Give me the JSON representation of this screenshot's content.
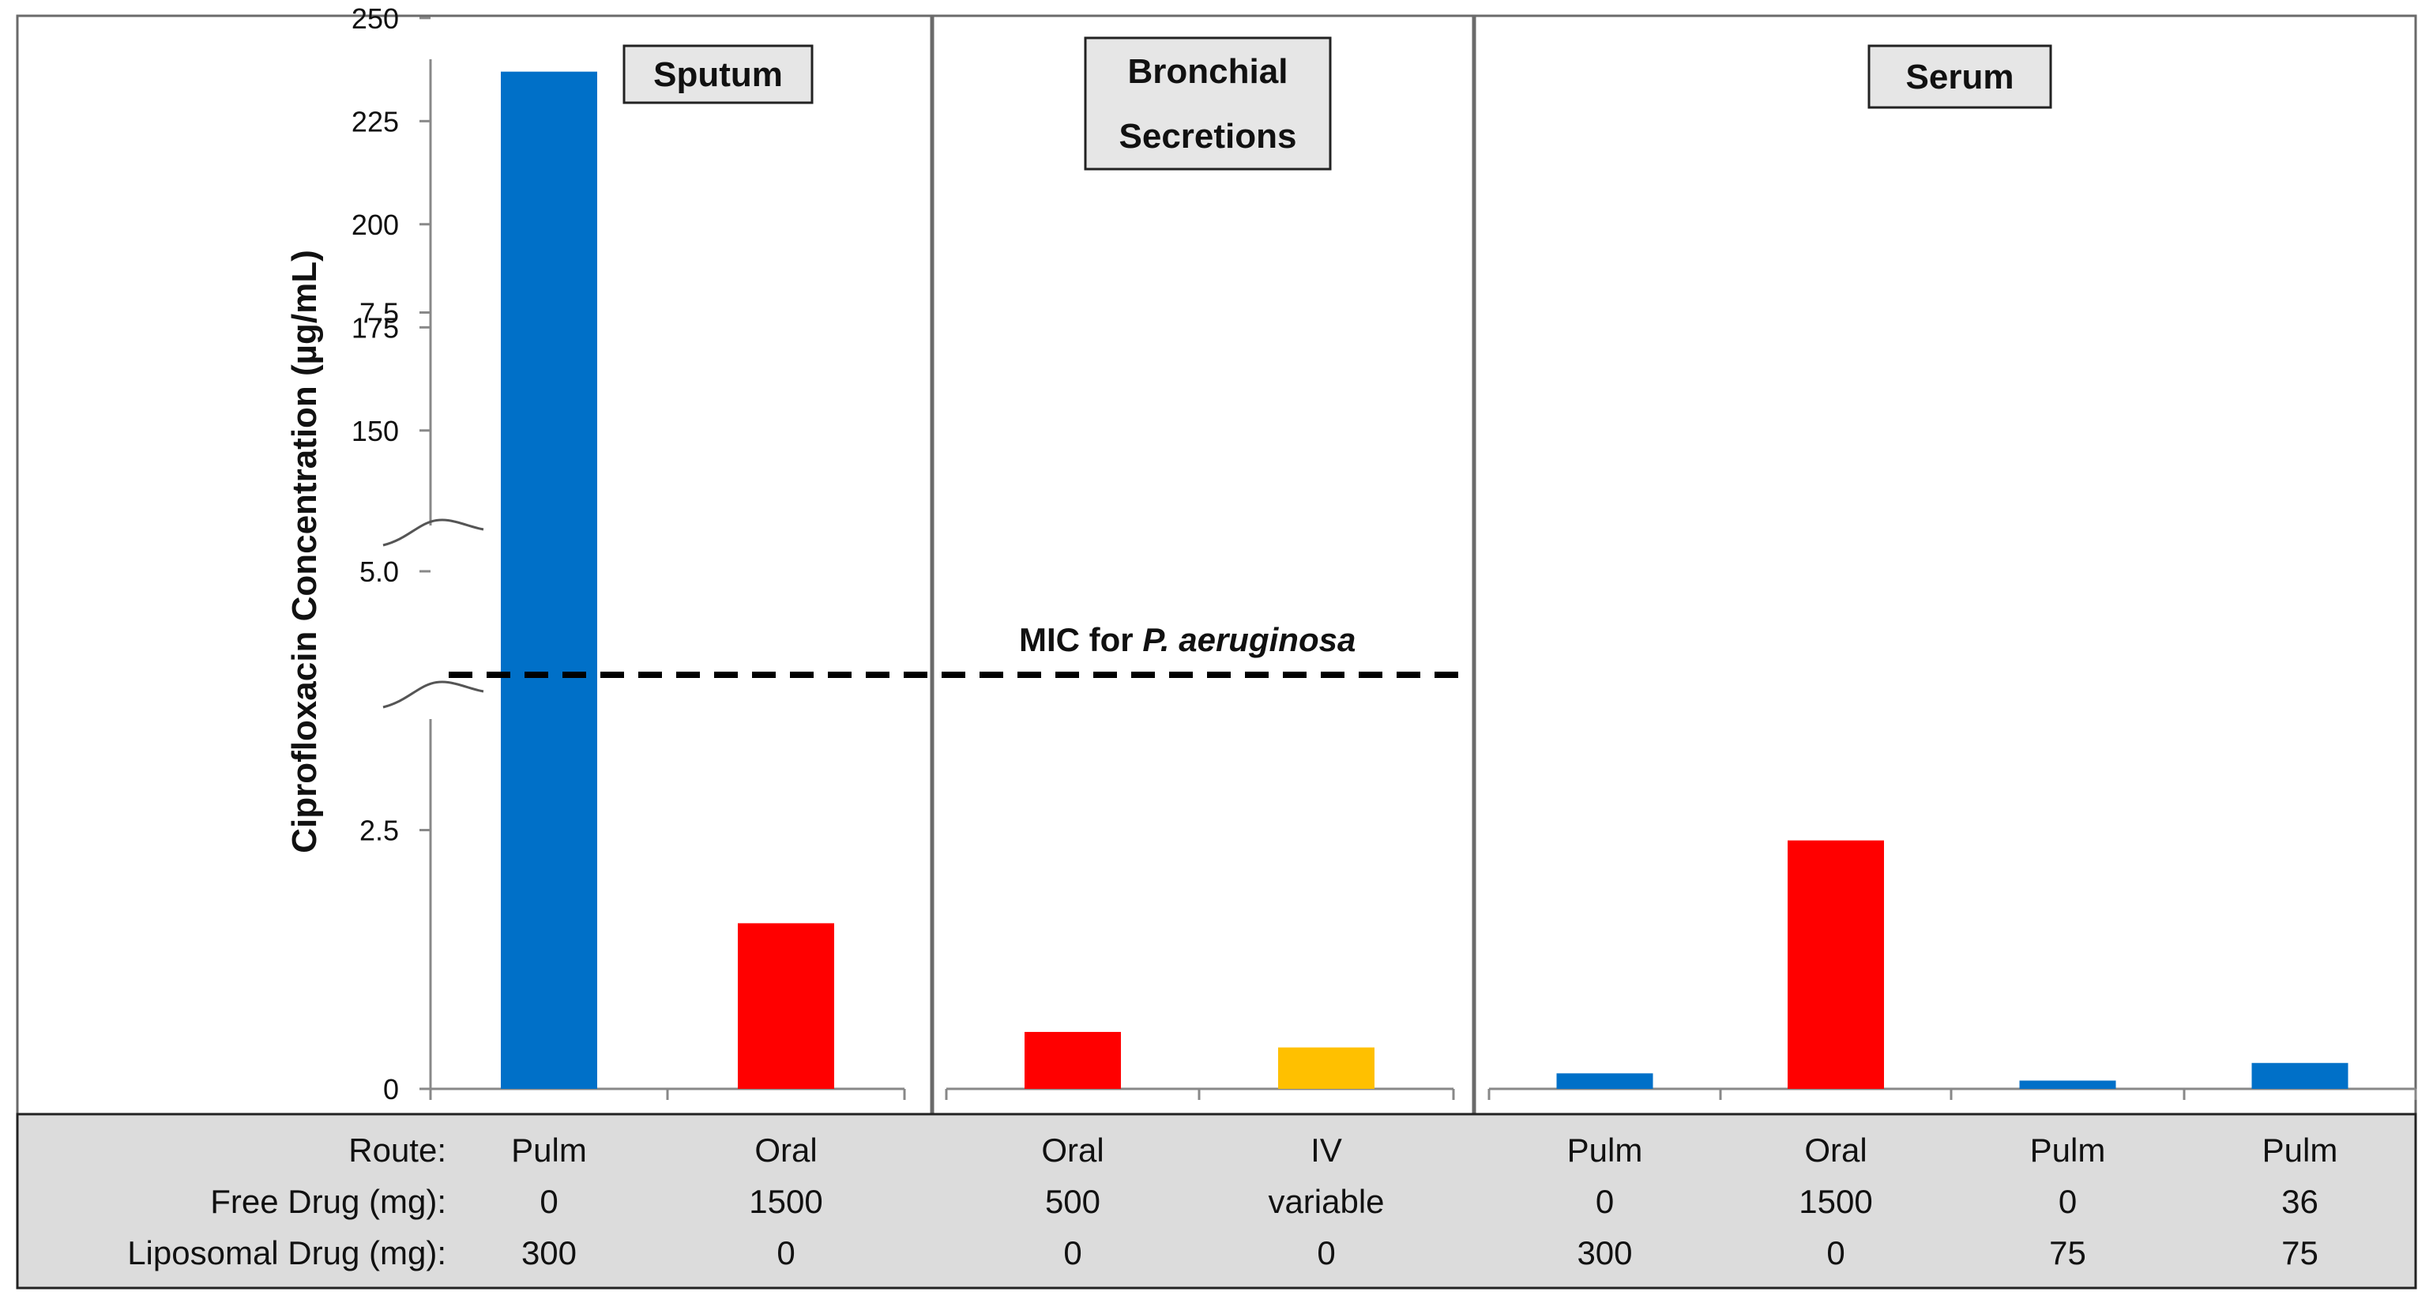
{
  "chart_data": {
    "type": "bar",
    "ylabel": "Ciprofloxacin Concentration (µg/mL)",
    "ylim": [
      0,
      250
    ],
    "axis_break": {
      "lower_range": [
        0,
        8.75
      ],
      "upper_range": [
        140,
        250
      ]
    },
    "yticks": [
      {
        "value": 0,
        "label": "0"
      },
      {
        "value": 2.5,
        "label": "2.5"
      },
      {
        "value": 5.0,
        "label": "5.0"
      },
      {
        "value": 7.5,
        "label": "7.5"
      },
      {
        "value": 150,
        "label": "150"
      },
      {
        "value": 175,
        "label": "175"
      },
      {
        "value": 200,
        "label": "200"
      },
      {
        "value": 225,
        "label": "225"
      },
      {
        "value": 250,
        "label": "250"
      }
    ],
    "grid": false,
    "reference_line": {
      "value": 4.0,
      "label_prefix": "MIC for ",
      "label_italic": "P. aeruginosa",
      "style": "dashed"
    },
    "panels": [
      {
        "title_lines": [
          "Sputum"
        ],
        "bars": [
          {
            "route": "Pulm",
            "free_drug": "0",
            "liposomal_drug": "300",
            "value": 237,
            "color": "#0070C8"
          },
          {
            "route": "Oral",
            "free_drug": "1500",
            "liposomal_drug": "0",
            "value": 1.6,
            "color": "#FF0000"
          }
        ]
      },
      {
        "title_lines": [
          "Bronchial",
          "Secretions"
        ],
        "bars": [
          {
            "route": "Oral",
            "free_drug": "500",
            "liposomal_drug": "0",
            "value": 0.55,
            "color": "#FF0000"
          },
          {
            "route": "IV",
            "free_drug": "variable",
            "liposomal_drug": "0",
            "value": 0.4,
            "color": "#FFC000"
          }
        ]
      },
      {
        "title_lines": [
          "Serum"
        ],
        "bars": [
          {
            "route": "Pulm",
            "free_drug": "0",
            "liposomal_drug": "300",
            "value": 0.15,
            "color": "#0070C8"
          },
          {
            "route": "Oral",
            "free_drug": "1500",
            "liposomal_drug": "0",
            "value": 2.4,
            "color": "#FF0000"
          },
          {
            "route": "Pulm",
            "free_drug": "0",
            "liposomal_drug": "75",
            "value": 0.08,
            "color": "#0070C8"
          },
          {
            "route": "Pulm",
            "free_drug": "36",
            "liposomal_drug": "75",
            "value": 0.25,
            "color": "#0070C8"
          }
        ]
      }
    ],
    "table_row_labels": {
      "route": "Route:",
      "free_drug": "Free Drug (mg):",
      "liposomal_drug": "Liposomal Drug (mg):"
    }
  }
}
